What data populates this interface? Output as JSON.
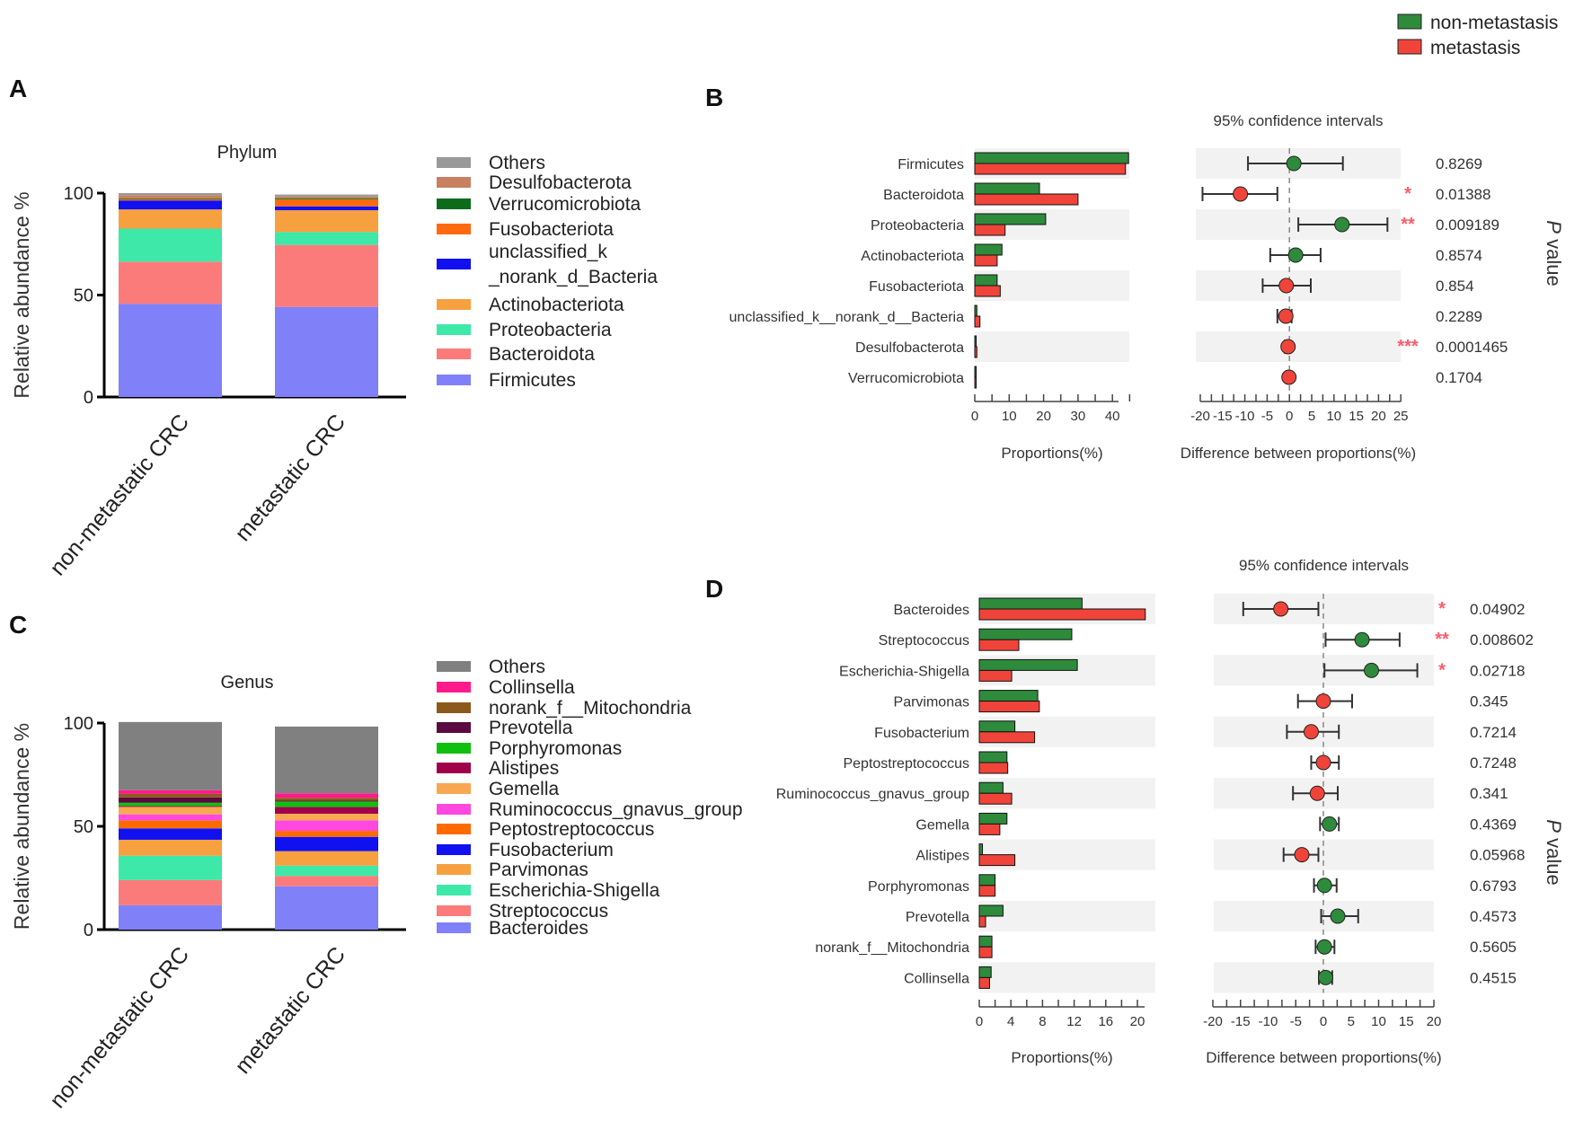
{
  "panels": {
    "A": "A",
    "B": "B",
    "C": "C",
    "D": "D"
  },
  "legend": {
    "items": [
      {
        "name": "non-metastasis",
        "color": "#2e8b3c"
      },
      {
        "name": "metastasis",
        "color": "#f0443a"
      }
    ]
  },
  "chart_data": [
    {
      "type": "bar",
      "stacked": true,
      "title": "Phylum",
      "ylabel": "Relative abundance %",
      "ylim": [
        0,
        100
      ],
      "yticks": [
        "0",
        "50",
        "100"
      ],
      "categories": [
        "non-metastatic CRC",
        "metastatic CRC"
      ],
      "series": [
        {
          "name": "Firmicutes",
          "legend": [
            "Firmicutes"
          ],
          "color": "#8080f8",
          "values": [
            45.7,
            44.2
          ]
        },
        {
          "name": "Bacteroidota",
          "legend": [
            "Bacteroidota"
          ],
          "color": "#fb7b7b",
          "values": [
            20.7,
            30.4
          ]
        },
        {
          "name": "Proteobacteria",
          "legend": [
            "Proteobacteria"
          ],
          "color": "#3ee8a8",
          "values": [
            16.2,
            6.3
          ]
        },
        {
          "name": "Actinobacteriota",
          "legend": [
            "Actinobacteriota"
          ],
          "color": "#f7a040",
          "values": [
            9.4,
            10.7
          ]
        },
        {
          "name": "unclassified_k__norank_d__Bacteria",
          "legend": [
            "unclassified_k",
            "_norank_d_Bacteria"
          ],
          "color": "#1010f0",
          "values": [
            4.4,
            1.9
          ]
        },
        {
          "name": "Fusobacteriota",
          "legend": [
            "Fusobacteriota"
          ],
          "color": "#ff6a10",
          "values": [
            0.6,
            3.5
          ]
        },
        {
          "name": "Verrucomicrobiota",
          "legend": [
            "Verrucomicrobiota"
          ],
          "color": "#0b6b1a",
          "values": [
            0.4,
            0.5
          ]
        },
        {
          "name": "Desulfobacterota",
          "legend": [
            "Desulfobacterota"
          ],
          "color": "#c88060",
          "values": [
            1.6,
            0.8
          ]
        },
        {
          "name": "Others",
          "legend": [
            "Others"
          ],
          "color": "#999999",
          "values": [
            1.0,
            1.0
          ]
        }
      ]
    },
    {
      "type": "bar",
      "subtype": "extended-error-bar",
      "categories": [
        "Firmicutes",
        "Bacteroidota",
        "Proteobacteria",
        "Actinobacteriota",
        "Fusobacteriota",
        "unclassified_k__norank_d__Bacteria",
        "Desulfobacterota",
        "Verrucomicrobiota"
      ],
      "series": [
        {
          "name": "non-metastasis",
          "values": [
            44.7,
            18.8,
            20.6,
            7.9,
            6.5,
            0.6,
            0.4,
            0.3
          ]
        },
        {
          "name": "metastasis",
          "values": [
            43.8,
            30.0,
            8.8,
            6.5,
            7.4,
            1.5,
            0.6,
            0.3
          ]
        }
      ],
      "difference": {
        "estimate": [
          1.0,
          -11.0,
          11.8,
          1.4,
          -0.7,
          -0.8,
          -0.3,
          -0.1
        ],
        "lower": [
          -9.3,
          -19.5,
          2.0,
          -4.3,
          -6.0,
          -2.7,
          -1.0,
          -0.6
        ],
        "upper": [
          12.0,
          -2.7,
          22.0,
          7.0,
          4.8,
          0.5,
          0.2,
          0.4
        ],
        "enriched": [
          "non-metastasis",
          "metastasis",
          "non-metastasis",
          "non-metastasis",
          "metastasis",
          "metastasis",
          "metastasis",
          "metastasis"
        ]
      },
      "p_values": [
        "0.8269",
        "0.01388",
        "0.009189",
        "0.8574",
        "0.854",
        "0.2289",
        "0.0001465",
        "0.1704"
      ],
      "significance": [
        "",
        "*",
        "**",
        "",
        "",
        "",
        "***",
        ""
      ],
      "prop_xlabel": "Proportions(%)",
      "prop_ticks": [
        "0",
        "10",
        "20",
        "30",
        "40"
      ],
      "prop_xlim": [
        0,
        45
      ],
      "ci_title": "95% confidence intervals",
      "diff_xlabel": "Difference between proportions(%)",
      "diff_ticks": [
        "-20",
        "-15",
        "-10",
        "-5",
        "0",
        "5",
        "10",
        "15",
        "20",
        "25"
      ],
      "diff_xlim": [
        -20,
        25
      ],
      "p_label": {
        "italic": "P",
        "rest": " value"
      }
    },
    {
      "type": "bar",
      "stacked": true,
      "title": "Genus",
      "ylabel": "Relative abundance %",
      "ylim": [
        0,
        100
      ],
      "yticks": [
        "0",
        "50",
        "100"
      ],
      "categories": [
        "non-metastatic CRC",
        "metastatic CRC"
      ],
      "series": [
        {
          "name": "Bacteroides",
          "legend": [
            "Bacteroides"
          ],
          "color": "#8080f8",
          "values": [
            11.8,
            21.0
          ]
        },
        {
          "name": "Streptococcus",
          "legend": [
            "Streptococcus"
          ],
          "color": "#fb7b7b",
          "values": [
            12.2,
            5.0
          ]
        },
        {
          "name": "Escherichia-Shigella",
          "legend": [
            "Escherichia-Shigella"
          ],
          "color": "#3ee8a8",
          "values": [
            11.8,
            5.0
          ]
        },
        {
          "name": "Parvimonas",
          "legend": [
            "Parvimonas"
          ],
          "color": "#f7a040",
          "values": [
            7.7,
            7.0
          ]
        },
        {
          "name": "Fusobacterium",
          "legend": [
            "Fusobacterium"
          ],
          "color": "#1010f0",
          "values": [
            5.5,
            6.9
          ]
        },
        {
          "name": "Peptostreptococcus",
          "legend": [
            "Peptostreptococcus"
          ],
          "color": "#ff6a00",
          "values": [
            3.9,
            2.9
          ]
        },
        {
          "name": "Ruminococcus_gnavus_group",
          "legend": [
            "Ruminococcus_gnavus_group"
          ],
          "color": "#ff48e0",
          "values": [
            2.9,
            5.1
          ]
        },
        {
          "name": "Gemella",
          "legend": [
            "Gemella"
          ],
          "color": "#f8a850",
          "values": [
            3.6,
            3.2
          ]
        },
        {
          "name": "Alistipes",
          "legend": [
            "Alistipes"
          ],
          "color": "#a0004a",
          "values": [
            0.4,
            3.3
          ]
        },
        {
          "name": "Porphyromonas",
          "legend": [
            "Porphyromonas"
          ],
          "color": "#10c010",
          "values": [
            1.6,
            2.6
          ]
        },
        {
          "name": "Prevotella",
          "legend": [
            "Prevotella"
          ],
          "color": "#5a0a40",
          "values": [
            2.6,
            0.4
          ]
        },
        {
          "name": "norank_f__Mitochondria",
          "legend": [
            "norank_f__Mitochondria"
          ],
          "color": "#8b5a1a",
          "values": [
            1.7,
            1.4
          ]
        },
        {
          "name": "Collinsella",
          "legend": [
            "Collinsella"
          ],
          "color": "#ff1a8c",
          "values": [
            1.8,
            2.2
          ]
        },
        {
          "name": "Others",
          "legend": [
            "Others"
          ],
          "color": "#808080",
          "values": [
            33.0,
            32.3
          ]
        }
      ]
    },
    {
      "type": "bar",
      "subtype": "extended-error-bar",
      "categories": [
        "Bacteroides",
        "Streptococcus",
        "Escherichia-Shigella",
        "Parvimonas",
        "Fusobacterium",
        "Peptostreptococcus",
        "Ruminococcus_gnavus_group",
        "Gemella",
        "Alistipes",
        "Porphyromonas",
        "Prevotella",
        "norank_f__Mitochondria",
        "Collinsella"
      ],
      "series": [
        {
          "name": "non-metastasis",
          "values": [
            13.0,
            11.7,
            12.4,
            7.4,
            4.5,
            3.5,
            3.0,
            3.5,
            0.4,
            2.0,
            3.0,
            1.6,
            1.5
          ]
        },
        {
          "name": "metastasis",
          "values": [
            21.0,
            5.0,
            4.1,
            7.6,
            7.0,
            3.6,
            4.1,
            2.6,
            4.5,
            2.0,
            0.8,
            1.6,
            1.3
          ]
        }
      ],
      "difference": {
        "estimate": [
          -7.7,
          7.0,
          8.7,
          0.0,
          -2.2,
          0.0,
          -1.1,
          1.1,
          -3.9,
          0.2,
          2.6,
          0.2,
          0.4
        ],
        "lower": [
          -14.5,
          0.4,
          0.2,
          -4.6,
          -6.6,
          -2.2,
          -5.5,
          -0.6,
          -7.2,
          -1.7,
          -0.4,
          -1.4,
          -0.8
        ],
        "upper": [
          -0.9,
          13.8,
          17.0,
          5.2,
          2.8,
          2.8,
          2.6,
          2.8,
          -0.9,
          2.4,
          6.3,
          2.0,
          1.6
        ],
        "enriched": [
          "metastasis",
          "non-metastasis",
          "non-metastasis",
          "metastasis",
          "metastasis",
          "metastasis",
          "metastasis",
          "non-metastasis",
          "metastasis",
          "non-metastasis",
          "non-metastasis",
          "non-metastasis",
          "non-metastasis"
        ]
      },
      "p_values": [
        "0.04902",
        "0.008602",
        "0.02718",
        "0.345",
        "0.7214",
        "0.7248",
        "0.341",
        "0.4369",
        "0.05968",
        "0.6793",
        "0.4573",
        "0.5605",
        "0.4515"
      ],
      "significance": [
        "*",
        "**",
        "*",
        "",
        "",
        "",
        "",
        "",
        "",
        "",
        "",
        "",
        ""
      ],
      "prop_xlabel": "Proportions(%)",
      "prop_ticks": [
        "0",
        "4",
        "8",
        "12",
        "16",
        "20"
      ],
      "prop_xlim": [
        0,
        21
      ],
      "ci_title": "95% confidence intervals",
      "diff_xlabel": "Difference between proportions(%)",
      "diff_ticks": [
        "-20",
        "-15",
        "-10",
        "-5",
        "0",
        "5",
        "10",
        "15",
        "20"
      ],
      "diff_xlim": [
        -20,
        20
      ],
      "p_label": {
        "italic": "P",
        "rest": " value"
      }
    }
  ]
}
